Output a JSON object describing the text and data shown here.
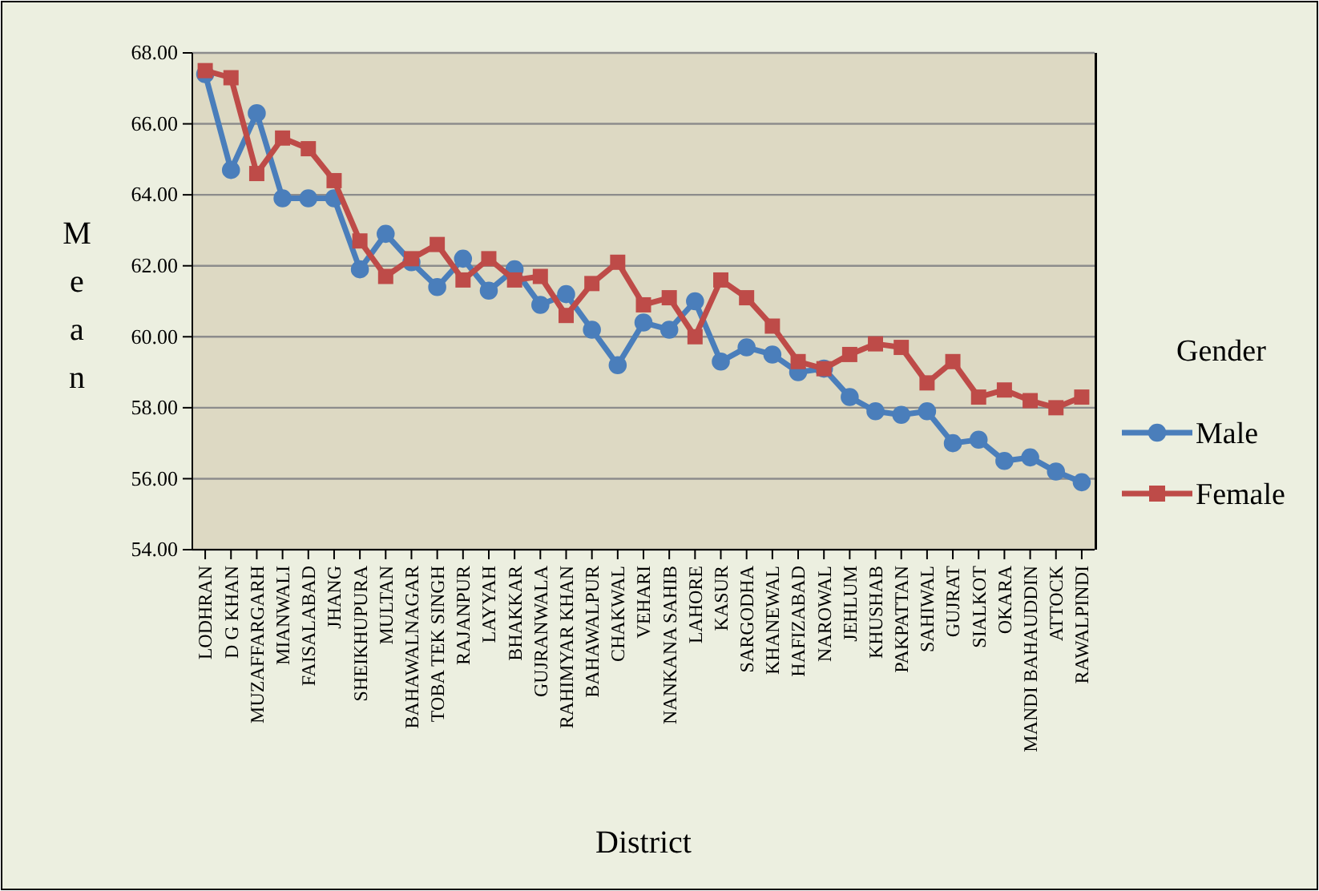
{
  "chart_data": {
    "type": "line",
    "xlabel": "District",
    "ylabel": "Mean",
    "legend_title": "Gender",
    "legend": "right",
    "grid": "y",
    "categories": [
      "LODHRAN",
      "D G KHAN",
      "MUZAFFARGARH",
      "MIANWALI",
      "FAISALABAD",
      "JHANG",
      "SHEIKHUPURA",
      "MULTAN",
      "BAHAWALNAGAR",
      "TOBA TEK SINGH",
      "RAJANPUR",
      "LAYYAH",
      "BHAKKAR",
      "GUJRANWALA",
      "RAHIMYAR KHAN",
      "BAHAWALPUR",
      "CHAKWAL",
      "VEHARI",
      "NANKANA SAHIB",
      "LAHORE",
      "KASUR",
      "SARGODHA",
      "KHANEWAL",
      "HAFIZABAD",
      "NAROWAL",
      "JEHLUM",
      "KHUSHAB",
      "PAKPATTAN",
      "SAHIWAL",
      "GUJRAT",
      "SIALKOT",
      "OKARA",
      "MANDI BAHAUDDIN",
      "ATTOCK",
      "RAWALPINDI"
    ],
    "ylim": [
      54,
      68
    ],
    "yticks": [
      {
        "value": 54,
        "label": "54.00"
      },
      {
        "value": 56,
        "label": "56.00"
      },
      {
        "value": 58,
        "label": "58.00"
      },
      {
        "value": 60,
        "label": "60.00"
      },
      {
        "value": 62,
        "label": "62.00"
      },
      {
        "value": 64,
        "label": "64.00"
      },
      {
        "value": 66,
        "label": "66.00"
      },
      {
        "value": 68,
        "label": "68.00"
      }
    ],
    "series": [
      {
        "name": "Male",
        "color": "#4a7ebb",
        "marker": "circle",
        "values": [
          67.4,
          64.7,
          66.3,
          63.9,
          63.9,
          63.9,
          61.9,
          62.9,
          62.1,
          61.4,
          62.2,
          61.3,
          61.9,
          60.9,
          61.2,
          60.2,
          59.2,
          60.4,
          60.2,
          61.0,
          59.3,
          59.7,
          59.5,
          59.0,
          59.1,
          58.3,
          57.9,
          57.8,
          57.9,
          57.0,
          57.1,
          56.5,
          56.6,
          56.2,
          55.9
        ]
      },
      {
        "name": "Female",
        "color": "#be4b48",
        "marker": "square",
        "values": [
          67.5,
          67.3,
          64.6,
          65.6,
          65.3,
          64.4,
          62.7,
          61.7,
          62.2,
          62.6,
          61.6,
          62.2,
          61.6,
          61.7,
          60.6,
          61.5,
          62.1,
          60.9,
          61.1,
          60.0,
          61.6,
          61.1,
          60.3,
          59.3,
          59.1,
          59.5,
          59.8,
          59.7,
          58.7,
          59.3,
          58.3,
          58.5,
          58.2,
          58.0,
          58.3
        ]
      }
    ]
  }
}
